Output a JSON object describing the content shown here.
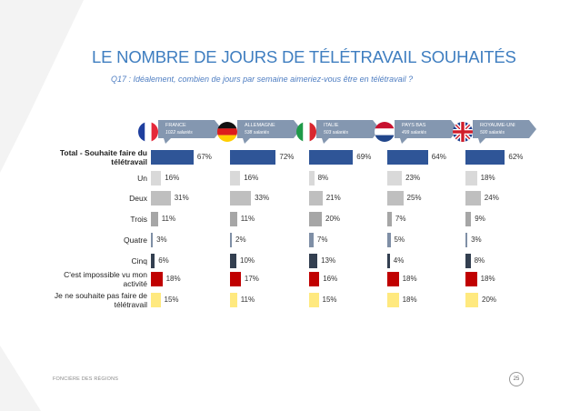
{
  "title": "LE NOMBRE DE JOURS DE TÉLÉTRAVAIL SOUHAITÉS",
  "subtitle": "Q17 : Idéalement, combien de jours par semaine aimeriez-vous être en télétravail ?",
  "footer": {
    "company": "FONCIÈRE DES RÉGIONS",
    "page": "25"
  },
  "colors": {
    "total": "#2f5597",
    "un": "#d9d9d9",
    "deux": "#bfbfbf",
    "trois": "#a6a6a6",
    "quatre": "#7f8fa6",
    "cinq": "#333f50",
    "impossible": "#c00000",
    "ne_souhaite_pas": "#ffe97f",
    "tag": "#8497b0"
  },
  "chart_data": {
    "type": "bar",
    "orientation": "horizontal",
    "categories": [
      "Total - Souhaite faire du télétravail",
      "Un",
      "Deux",
      "Trois",
      "Quatre",
      "Cinq",
      "C'est impossible vu mon activité",
      "Je ne souhaite pas faire de télétravail"
    ],
    "series": [
      {
        "name": "FRANCE",
        "sample": "1022 salariés",
        "flag": "france-flag-icon",
        "values": [
          67,
          16,
          31,
          11,
          3,
          6,
          18,
          15
        ]
      },
      {
        "name": "ALLEMAGNE",
        "sample": "538 salariés",
        "flag": "germany-flag-icon",
        "values": [
          72,
          16,
          33,
          11,
          2,
          10,
          17,
          11
        ]
      },
      {
        "name": "ITALIE",
        "sample": "503 salariés",
        "flag": "italy-flag-icon",
        "values": [
          69,
          8,
          21,
          20,
          7,
          13,
          16,
          15
        ]
      },
      {
        "name": "PAYS BAS",
        "sample": "499 salariés",
        "flag": "netherlands-flag-icon",
        "values": [
          64,
          23,
          25,
          7,
          5,
          4,
          18,
          18
        ]
      },
      {
        "name": "ROYAUME-UNI",
        "sample": "500 salariés",
        "flag": "uk-flag-icon",
        "values": [
          62,
          18,
          24,
          9,
          3,
          8,
          18,
          20
        ]
      }
    ],
    "unit": "%",
    "xlim": [
      0,
      100
    ],
    "grid": false,
    "legend": "none"
  }
}
